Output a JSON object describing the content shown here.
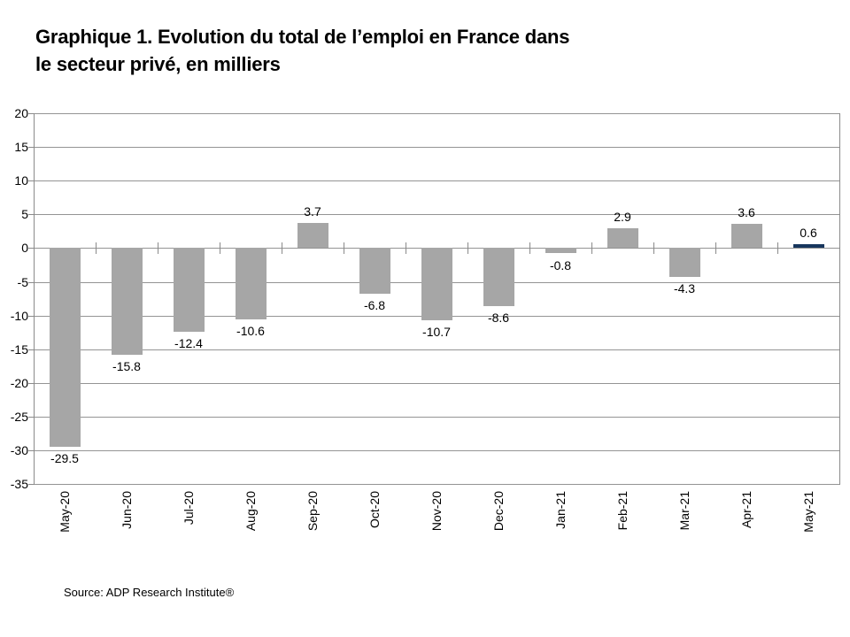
{
  "title": {
    "line1": "Graphique 1. Evolution du total de l’emploi en France dans",
    "line2": "le secteur privé, en milliers"
  },
  "source": "Source: ADP Research Institute®",
  "chart_data": {
    "type": "bar",
    "title": "Graphique 1. Evolution du total de l’emploi en France dans le secteur privé, en milliers",
    "categories": [
      "May-20",
      "Jun-20",
      "Jul-20",
      "Aug-20",
      "Sep-20",
      "Oct-20",
      "Nov-20",
      "Dec-20",
      "Jan-21",
      "Feb-21",
      "Mar-21",
      "Apr-21",
      "May-21"
    ],
    "values": [
      -29.5,
      -15.8,
      -12.4,
      -10.6,
      3.7,
      -6.8,
      -10.7,
      -8.6,
      -0.8,
      2.9,
      -4.3,
      3.6,
      0.6
    ],
    "data_labels": [
      "-29.5",
      "-15.8",
      "-12.4",
      "-10.6",
      "3.7",
      "-6.8",
      "-10.7",
      "-8.6",
      "-0.8",
      "2.9",
      "-4.3",
      "3.6",
      "0.6"
    ],
    "xlabel": "",
    "ylabel": "",
    "ylim": [
      -35,
      20
    ],
    "yticks": [
      20,
      15,
      10,
      5,
      0,
      -5,
      -10,
      -15,
      -20,
      -25,
      -30,
      -35
    ],
    "grid": true,
    "legend": "none",
    "bar_color": "#A6A6A6",
    "highlight_color": "#17365D",
    "highlight_index": 12,
    "gridline_color": "#949494",
    "axis_color": "#8a8a8a"
  }
}
